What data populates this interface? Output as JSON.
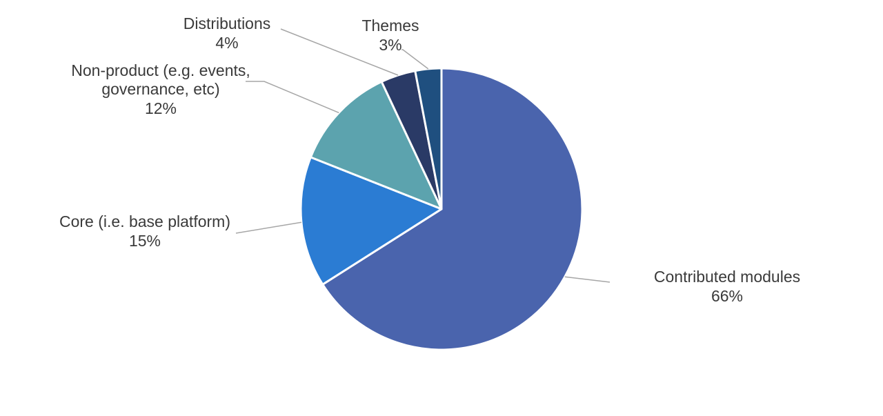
{
  "chart_data": {
    "type": "pie",
    "title": "",
    "slices": [
      {
        "label": "Contributed modules",
        "value_label": "66%",
        "value": 66,
        "color": "#4a64ad"
      },
      {
        "label": "Core (i.e. base platform)",
        "value_label": "15%",
        "value": 15,
        "color": "#2b7cd3"
      },
      {
        "label": "Non-product (e.g. events, governance, etc)",
        "value_label": "12%",
        "value": 12,
        "color": "#5ca3ae"
      },
      {
        "label": "Distributions",
        "value_label": "4%",
        "value": 4,
        "color": "#2a3a66"
      },
      {
        "label": "Themes",
        "value_label": "3%",
        "value": 3,
        "color": "#1f4f7f"
      }
    ],
    "legend": "none",
    "data_labels": "outside with leader lines",
    "start_direction": "12 o'clock, clockwise"
  }
}
